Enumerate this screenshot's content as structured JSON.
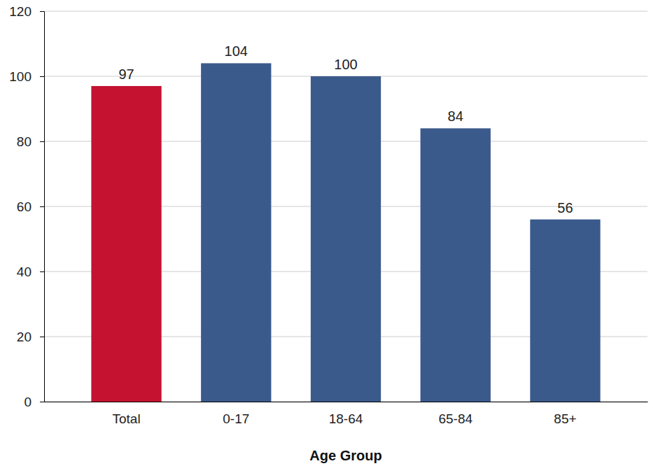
{
  "chart_data": {
    "type": "bar",
    "xlabel": "Age Group",
    "categories": [
      "Total",
      "0-17",
      "18-64",
      "65-84",
      "85+"
    ],
    "values": [
      97,
      104,
      100,
      84,
      56
    ],
    "colors": [
      "#c41230",
      "#3b5a8c",
      "#3b5a8c",
      "#3b5a8c",
      "#3b5a8c"
    ],
    "ylim": [
      0,
      120
    ],
    "yticks": [
      0,
      20,
      40,
      60,
      80,
      100,
      120
    ],
    "grid": true,
    "data_labels": true
  }
}
